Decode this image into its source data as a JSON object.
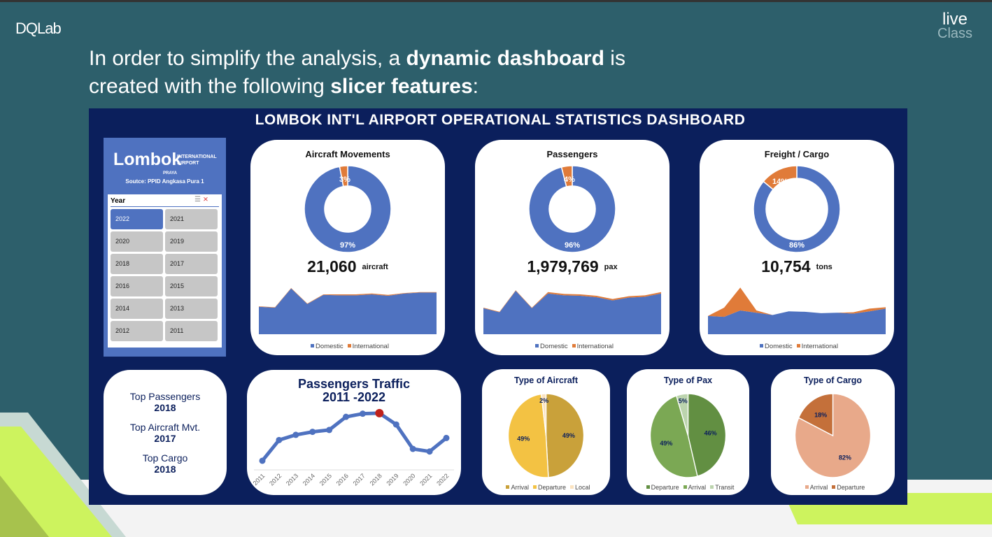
{
  "slide": {
    "logo": "DQLab",
    "live_logo_top": "live",
    "live_logo_bottom": "Class",
    "headline": {
      "part1": "In order to simplify the analysis, a ",
      "bold1": "dynamic dashboard",
      "part2": " is",
      "part3": "created with the following ",
      "bold2": "slicer features",
      "part4": ":"
    }
  },
  "dashboard": {
    "title": "LOMBOK INT'L AIRPORT OPERATIONAL STATISTICS DASHBOARD",
    "brand": {
      "name": "Lombok",
      "sub1": "INTERNATIONAL",
      "sub2": "AIRPORT",
      "sub3": "PRAYA",
      "source": "Soutce: PPID Angkasa Pura 1"
    },
    "slicer": {
      "title": "Year",
      "selected": "2022",
      "years": [
        "2022",
        "2021",
        "2020",
        "2019",
        "2018",
        "2017",
        "2016",
        "2015",
        "2014",
        "2013",
        "2012",
        "2011"
      ]
    },
    "kpis": [
      {
        "title": "Aircraft Movements",
        "value": "21,060",
        "unit": "aircraft"
      },
      {
        "title": "Passengers",
        "value": "1,979,769",
        "unit": "pax"
      },
      {
        "title": "Freight / Cargo",
        "value": "10,754",
        "unit": "tons"
      }
    ],
    "area_legend": [
      "Domestic",
      "International"
    ],
    "tops": [
      {
        "label": "Top Passengers",
        "value": "2018"
      },
      {
        "label": "Top Aircraft Mvt.",
        "value": "2017"
      },
      {
        "label": "Top Cargo",
        "value": "2018"
      }
    ],
    "traffic_title": [
      "Passengers Traffic",
      "2011 -2022"
    ],
    "colors": {
      "domestic": "#4f72c0",
      "international": "#e07b39",
      "navy": "#0b1f5c",
      "highlight": "#c0221c"
    }
  },
  "chart_data": [
    {
      "type": "pie",
      "variant": "donut",
      "title": "Aircraft Movements",
      "labels": [
        "Domestic",
        "International"
      ],
      "values": [
        97,
        3
      ],
      "value_labels": [
        "97%",
        "3%"
      ],
      "colors": [
        "#4f72c0",
        "#e07b39"
      ]
    },
    {
      "type": "pie",
      "variant": "donut",
      "title": "Passengers",
      "labels": [
        "Domestic",
        "International"
      ],
      "values": [
        96,
        4
      ],
      "value_labels": [
        "96%",
        "4%"
      ],
      "colors": [
        "#4f72c0",
        "#e07b39"
      ]
    },
    {
      "type": "pie",
      "variant": "donut",
      "title": "Freight / Cargo",
      "labels": [
        "Domestic",
        "International"
      ],
      "values": [
        86,
        14
      ],
      "value_labels": [
        "86%",
        "14%"
      ],
      "colors": [
        "#4f72c0",
        "#e07b39"
      ]
    },
    {
      "type": "area",
      "stacked": true,
      "title": "Aircraft Movements",
      "x": [
        "2011",
        "2012",
        "2013",
        "2014",
        "2015",
        "2016",
        "2017",
        "2018",
        "2019",
        "2020",
        "2021",
        "2022"
      ],
      "legend": "bottom",
      "series": [
        {
          "name": "Domestic",
          "values": [
            60,
            58,
            100,
            66,
            86,
            85,
            85,
            87,
            84,
            89,
            91,
            91
          ]
        },
        {
          "name": "International",
          "values": [
            1,
            1,
            1,
            1,
            1,
            2,
            2,
            2,
            2,
            1,
            1,
            1
          ]
        }
      ]
    },
    {
      "type": "area",
      "stacked": true,
      "title": "Passengers",
      "x": [
        "2011",
        "2012",
        "2013",
        "2014",
        "2015",
        "2016",
        "2017",
        "2018",
        "2019",
        "2020",
        "2021",
        "2022"
      ],
      "legend": "bottom",
      "series": [
        {
          "name": "Domestic",
          "values": [
            57,
            48,
            95,
            57,
            89,
            85,
            84,
            81,
            74,
            80,
            82,
            89
          ]
        },
        {
          "name": "International",
          "values": [
            1,
            1,
            1,
            1,
            3,
            3,
            3,
            3,
            3,
            3,
            3,
            3
          ]
        }
      ]
    },
    {
      "type": "area",
      "stacked": true,
      "title": "Freight / Cargo",
      "x": [
        "2011",
        "2012",
        "2013",
        "2014",
        "2015",
        "2016",
        "2017",
        "2018",
        "2019",
        "2020",
        "2021",
        "2022"
      ],
      "legend": "bottom",
      "series": [
        {
          "name": "Domestic",
          "values": [
            40,
            38,
            52,
            47,
            42,
            50,
            49,
            46,
            47,
            45,
            50,
            56
          ]
        },
        {
          "name": "International",
          "values": [
            0,
            20,
            50,
            5,
            0,
            0,
            0,
            0,
            0,
            3,
            6,
            3
          ]
        }
      ]
    },
    {
      "type": "line",
      "title": "Passengers Traffic 2011 -2022",
      "x": [
        "2011",
        "2012",
        "2013",
        "2014",
        "2015",
        "2016",
        "2017",
        "2018",
        "2019",
        "2020",
        "2021",
        "2022"
      ],
      "values": [
        0.31,
        1.83,
        2.21,
        2.43,
        2.57,
        3.53,
        3.76,
        3.8,
        2.97,
        1.18,
        0.99,
        1.98
      ],
      "highlight": "2018",
      "ylim": [
        0,
        4
      ]
    },
    {
      "type": "pie",
      "title": "Type of Aircraft",
      "labels": [
        "Arrival",
        "Departure",
        "Local"
      ],
      "values": [
        49,
        49,
        2
      ],
      "value_labels": [
        "49%",
        "49%",
        "2%"
      ],
      "colors": [
        "#c9a13a",
        "#f3c243",
        "#fbe3c0"
      ],
      "legend": "bottom"
    },
    {
      "type": "pie",
      "title": "Type of Pax",
      "labels": [
        "Departure",
        "Arrival",
        "Transit"
      ],
      "values": [
        46,
        49,
        5
      ],
      "value_labels": [
        "46%",
        "49%",
        "5%"
      ],
      "colors": [
        "#628f42",
        "#7ba854",
        "#bcd4ae"
      ],
      "legend": "bottom"
    },
    {
      "type": "pie",
      "title": "Type of Cargo",
      "labels": [
        "Arrival",
        "Departure"
      ],
      "values": [
        82,
        18
      ],
      "value_labels": [
        "82%",
        "18%"
      ],
      "colors": [
        "#e8a98a",
        "#c4703a"
      ],
      "legend": "bottom"
    }
  ]
}
